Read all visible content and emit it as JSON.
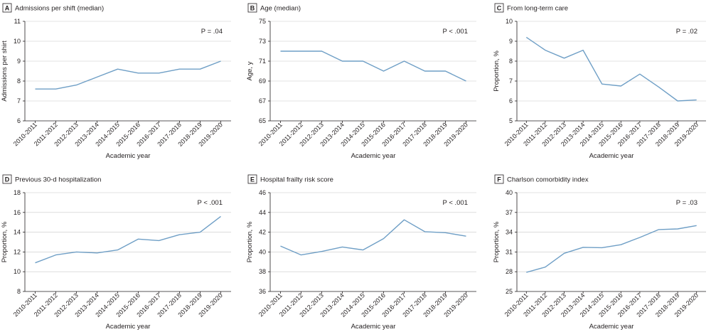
{
  "figure": {
    "line_color": "#6f9fc6",
    "grid_color": "#c8c8c8"
  },
  "chart_data": [
    {
      "type": "line",
      "panel": "A",
      "title": "Admissions per shift (median)",
      "xlabel": "Academic year",
      "ylabel": "Admissions per shirt",
      "pvalue": "P = .04",
      "categories": [
        "2010-2011",
        "2011-2012",
        "2012-2013",
        "2013-2014",
        "2014-2015",
        "2015-2016",
        "2016-2017",
        "2017-2018",
        "2018-2019",
        "2019-2020"
      ],
      "values": [
        7.6,
        7.6,
        7.8,
        8.2,
        8.6,
        8.4,
        8.4,
        8.6,
        8.6,
        9.0
      ],
      "ylim": [
        6,
        11
      ],
      "yticks": [
        6,
        7,
        8,
        9,
        10,
        11
      ]
    },
    {
      "type": "line",
      "panel": "B",
      "title": "Age (median)",
      "xlabel": "Academic year",
      "ylabel": "Age, y",
      "pvalue": "P < .001",
      "categories": [
        "2010-2011",
        "2011-2012",
        "2012-2013",
        "2013-2014",
        "2014-2015",
        "2015-2016",
        "2016-2017",
        "2017-2018",
        "2018-2019",
        "2019-2020"
      ],
      "values": [
        72,
        72,
        72,
        71,
        71,
        70,
        71,
        70,
        70,
        69
      ],
      "ylim": [
        65,
        75
      ],
      "yticks": [
        65,
        67,
        69,
        71,
        73,
        75
      ]
    },
    {
      "type": "line",
      "panel": "C",
      "title": "From long-term care",
      "xlabel": "Academic year",
      "ylabel": "Proportion, %",
      "pvalue": "P = .02",
      "categories": [
        "2010-2011",
        "2011-2012",
        "2012-2013",
        "2013-2014",
        "2014-2015",
        "2015-2016",
        "2016-2017",
        "2017-2018",
        "2018-2019",
        "2019-2020"
      ],
      "values": [
        9.2,
        8.55,
        8.15,
        8.55,
        6.85,
        6.75,
        7.35,
        6.7,
        6.0,
        6.05
      ],
      "ylim": [
        5,
        10
      ],
      "yticks": [
        5,
        6,
        7,
        8,
        9,
        10
      ]
    },
    {
      "type": "line",
      "panel": "D",
      "title": "Previous 30-d hospitalization",
      "xlabel": "Academic year",
      "ylabel": "Proportion, %",
      "pvalue": "P < .001",
      "categories": [
        "2010-2011",
        "2011-2012",
        "2012-2013",
        "2013-2014",
        "2014-2015",
        "2015-2016",
        "2016-2017",
        "2017-2018",
        "2018-2019",
        "2019-2020"
      ],
      "values": [
        10.9,
        11.7,
        12.0,
        11.9,
        12.2,
        13.3,
        13.15,
        13.75,
        14.0,
        15.6
      ],
      "ylim": [
        8,
        18
      ],
      "yticks": [
        8,
        10,
        12,
        14,
        16,
        18
      ]
    },
    {
      "type": "line",
      "panel": "E",
      "title": "Hospital frailty risk score",
      "xlabel": "Academic year",
      "ylabel": "Proportion, %",
      "pvalue": "P < .001",
      "categories": [
        "2010-2011",
        "2011-2012",
        "2012-2013",
        "2013-2014",
        "2014-2015",
        "2015-2016",
        "2016-2017",
        "2017-2018",
        "2018-2019",
        "2019-2020"
      ],
      "values": [
        40.6,
        39.7,
        40.05,
        40.5,
        40.2,
        41.35,
        43.25,
        42.05,
        41.95,
        41.6
      ],
      "ylim": [
        36,
        46
      ],
      "yticks": [
        36,
        38,
        40,
        42,
        44,
        46
      ]
    },
    {
      "type": "line",
      "panel": "F",
      "title": "Charlson comorbidity index",
      "xlabel": "Academic year",
      "ylabel": "Proportion, %",
      "pvalue": "P = .03",
      "categories": [
        "2010-2011",
        "2011-2012",
        "2012-2013",
        "2013-2014",
        "2014-2015",
        "2015-2016",
        "2016-2017",
        "2017-2018",
        "2018-2019",
        "2019-2020"
      ],
      "values": [
        27.9,
        28.7,
        30.8,
        31.7,
        31.65,
        32.1,
        33.2,
        34.4,
        34.5,
        35.0
      ],
      "ylim": [
        25,
        40
      ],
      "yticks": [
        25,
        28,
        31,
        34,
        37,
        40
      ]
    }
  ]
}
